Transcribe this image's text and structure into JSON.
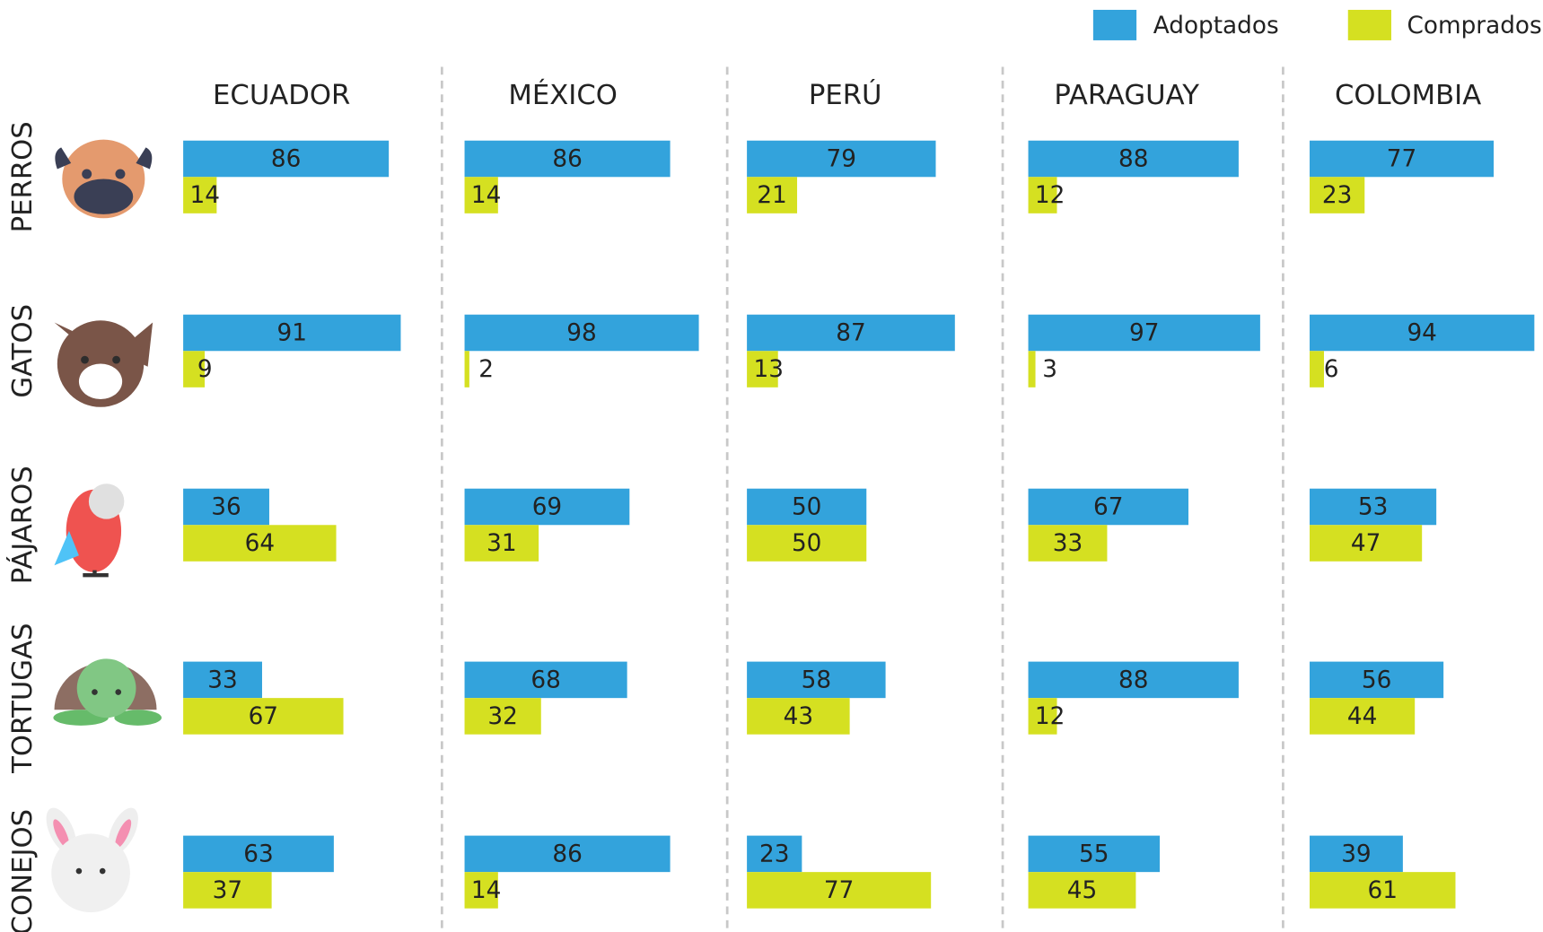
{
  "chart_data": {
    "type": "bar",
    "orientation": "horizontal",
    "countries": [
      "ECUADOR",
      "MÉXICO",
      "PERÚ",
      "PARAGUAY",
      "COLOMBIA"
    ],
    "categories": [
      "PERROS",
      "GATOS",
      "PÁJAROS",
      "TORTUGAS",
      "CONEJOS"
    ],
    "series": [
      {
        "name": "Adoptados",
        "color": "#33a3dc",
        "values": [
          [
            86,
            91,
            36,
            33,
            63
          ],
          [
            86,
            98,
            69,
            68,
            86
          ],
          [
            79,
            87,
            50,
            58,
            23
          ],
          [
            88,
            97,
            67,
            88,
            55
          ],
          [
            77,
            94,
            53,
            56,
            39
          ]
        ]
      },
      {
        "name": "Comprados",
        "color": "#d5e021",
        "values": [
          [
            14,
            9,
            64,
            67,
            37
          ],
          [
            14,
            2,
            31,
            32,
            14
          ],
          [
            21,
            13,
            50,
            43,
            77
          ],
          [
            12,
            3,
            33,
            12,
            45
          ],
          [
            23,
            6,
            47,
            44,
            61
          ]
        ]
      }
    ],
    "xlim": [
      0,
      100
    ]
  }
}
